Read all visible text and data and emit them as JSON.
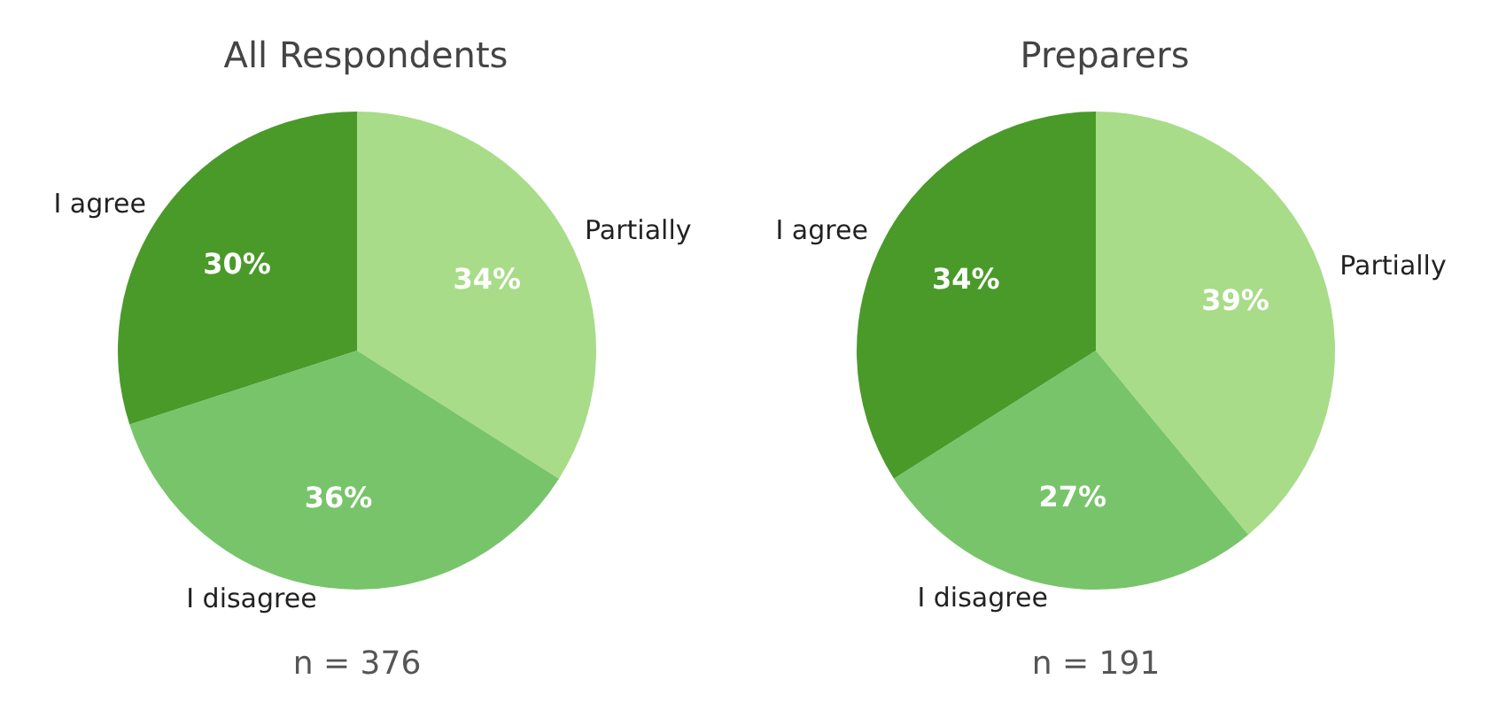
{
  "chart_data": [
    {
      "type": "pie",
      "title": "All Respondents",
      "categories": [
        "Partially",
        "I disagree",
        "I agree"
      ],
      "values": [
        34,
        36,
        30
      ],
      "colors": [
        "#a8dc88",
        "#78c46a",
        "#4a9a2a"
      ],
      "value_labels": [
        "34%",
        "36%",
        "30%"
      ],
      "annotations": [
        "n = 376"
      ]
    },
    {
      "type": "pie",
      "title": "Preparers",
      "categories": [
        "Partially",
        "I disagree",
        "I agree"
      ],
      "values": [
        39,
        27,
        34
      ],
      "colors": [
        "#a8dc88",
        "#78c46a",
        "#4a9a2a"
      ],
      "value_labels": [
        "39%",
        "27%",
        "34%"
      ],
      "annotations": [
        "n = 191"
      ]
    }
  ]
}
